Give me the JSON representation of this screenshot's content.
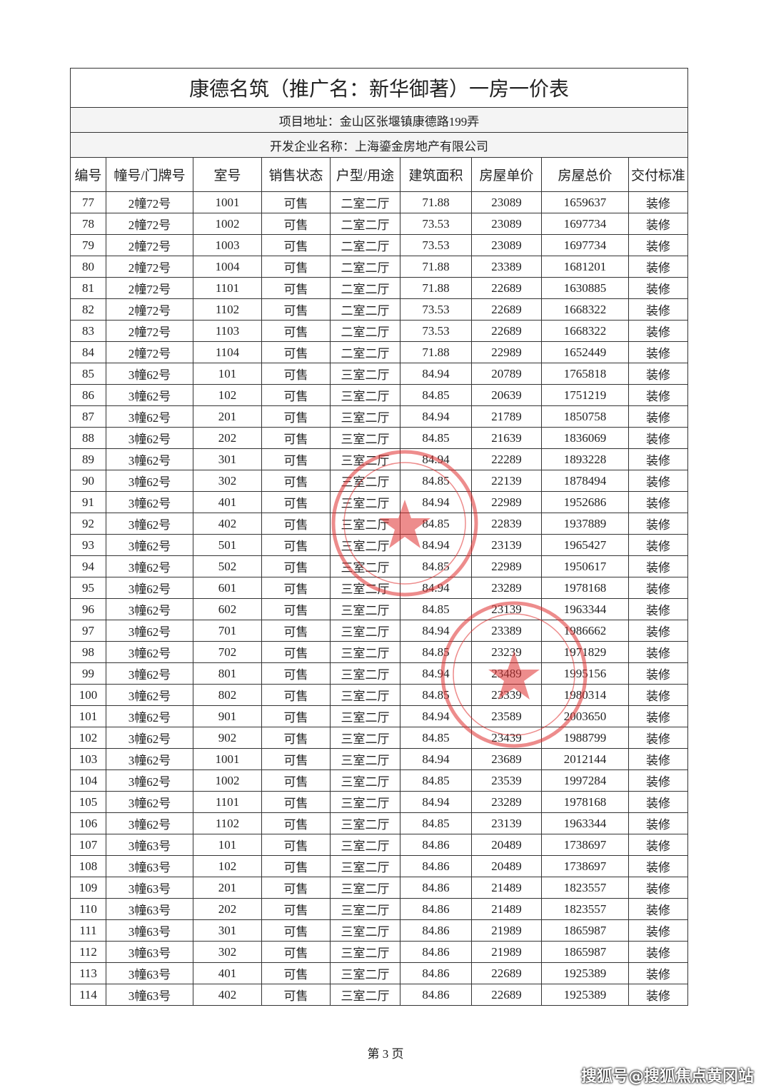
{
  "header": {
    "title": "康德名筑（推广名：新华御著）一房一价表",
    "address": "项目地址：金山区张堰镇康德路199弄",
    "developer": "开发企业名称：上海鎏金房地产有限公司"
  },
  "table": {
    "columns": [
      "编号",
      "幢号/门牌号",
      "室号",
      "销售状态",
      "户型/用途",
      "建筑面积",
      "房屋单价",
      "房屋总价",
      "交付标准"
    ],
    "rows": [
      [
        "77",
        "2幢72号",
        "1001",
        "可售",
        "二室二厅",
        "71.88",
        "23089",
        "1659637",
        "装修"
      ],
      [
        "78",
        "2幢72号",
        "1002",
        "可售",
        "二室二厅",
        "73.53",
        "23089",
        "1697734",
        "装修"
      ],
      [
        "79",
        "2幢72号",
        "1003",
        "可售",
        "二室二厅",
        "73.53",
        "23089",
        "1697734",
        "装修"
      ],
      [
        "80",
        "2幢72号",
        "1004",
        "可售",
        "二室二厅",
        "71.88",
        "23389",
        "1681201",
        "装修"
      ],
      [
        "81",
        "2幢72号",
        "1101",
        "可售",
        "二室二厅",
        "71.88",
        "22689",
        "1630885",
        "装修"
      ],
      [
        "82",
        "2幢72号",
        "1102",
        "可售",
        "二室二厅",
        "73.53",
        "22689",
        "1668322",
        "装修"
      ],
      [
        "83",
        "2幢72号",
        "1103",
        "可售",
        "二室二厅",
        "73.53",
        "22689",
        "1668322",
        "装修"
      ],
      [
        "84",
        "2幢72号",
        "1104",
        "可售",
        "二室二厅",
        "71.88",
        "22989",
        "1652449",
        "装修"
      ],
      [
        "85",
        "3幢62号",
        "101",
        "可售",
        "三室二厅",
        "84.94",
        "20789",
        "1765818",
        "装修"
      ],
      [
        "86",
        "3幢62号",
        "102",
        "可售",
        "三室二厅",
        "84.85",
        "20639",
        "1751219",
        "装修"
      ],
      [
        "87",
        "3幢62号",
        "201",
        "可售",
        "三室二厅",
        "84.94",
        "21789",
        "1850758",
        "装修"
      ],
      [
        "88",
        "3幢62号",
        "202",
        "可售",
        "三室二厅",
        "84.85",
        "21639",
        "1836069",
        "装修"
      ],
      [
        "89",
        "3幢62号",
        "301",
        "可售",
        "三室二厅",
        "84.94",
        "22289",
        "1893228",
        "装修"
      ],
      [
        "90",
        "3幢62号",
        "302",
        "可售",
        "三室二厅",
        "84.85",
        "22139",
        "1878494",
        "装修"
      ],
      [
        "91",
        "3幢62号",
        "401",
        "可售",
        "三室二厅",
        "84.94",
        "22989",
        "1952686",
        "装修"
      ],
      [
        "92",
        "3幢62号",
        "402",
        "可售",
        "三室二厅",
        "84.85",
        "22839",
        "1937889",
        "装修"
      ],
      [
        "93",
        "3幢62号",
        "501",
        "可售",
        "三室二厅",
        "84.94",
        "23139",
        "1965427",
        "装修"
      ],
      [
        "94",
        "3幢62号",
        "502",
        "可售",
        "三室二厅",
        "84.85",
        "22989",
        "1950617",
        "装修"
      ],
      [
        "95",
        "3幢62号",
        "601",
        "可售",
        "三室二厅",
        "84.94",
        "23289",
        "1978168",
        "装修"
      ],
      [
        "96",
        "3幢62号",
        "602",
        "可售",
        "三室二厅",
        "84.85",
        "23139",
        "1963344",
        "装修"
      ],
      [
        "97",
        "3幢62号",
        "701",
        "可售",
        "三室二厅",
        "84.94",
        "23389",
        "1986662",
        "装修"
      ],
      [
        "98",
        "3幢62号",
        "702",
        "可售",
        "三室二厅",
        "84.85",
        "23239",
        "1971829",
        "装修"
      ],
      [
        "99",
        "3幢62号",
        "801",
        "可售",
        "三室二厅",
        "84.94",
        "23489",
        "1995156",
        "装修"
      ],
      [
        "100",
        "3幢62号",
        "802",
        "可售",
        "三室二厅",
        "84.85",
        "23339",
        "1980314",
        "装修"
      ],
      [
        "101",
        "3幢62号",
        "901",
        "可售",
        "三室二厅",
        "84.94",
        "23589",
        "2003650",
        "装修"
      ],
      [
        "102",
        "3幢62号",
        "902",
        "可售",
        "三室二厅",
        "84.85",
        "23439",
        "1988799",
        "装修"
      ],
      [
        "103",
        "3幢62号",
        "1001",
        "可售",
        "三室二厅",
        "84.94",
        "23689",
        "2012144",
        "装修"
      ],
      [
        "104",
        "3幢62号",
        "1002",
        "可售",
        "三室二厅",
        "84.85",
        "23539",
        "1997284",
        "装修"
      ],
      [
        "105",
        "3幢62号",
        "1101",
        "可售",
        "三室二厅",
        "84.94",
        "23289",
        "1978168",
        "装修"
      ],
      [
        "106",
        "3幢62号",
        "1102",
        "可售",
        "三室二厅",
        "84.85",
        "23139",
        "1963344",
        "装修"
      ],
      [
        "107",
        "3幢63号",
        "101",
        "可售",
        "三室二厅",
        "84.86",
        "20489",
        "1738697",
        "装修"
      ],
      [
        "108",
        "3幢63号",
        "102",
        "可售",
        "三室二厅",
        "84.86",
        "20489",
        "1738697",
        "装修"
      ],
      [
        "109",
        "3幢63号",
        "201",
        "可售",
        "三室二厅",
        "84.86",
        "21489",
        "1823557",
        "装修"
      ],
      [
        "110",
        "3幢63号",
        "202",
        "可售",
        "三室二厅",
        "84.86",
        "21489",
        "1823557",
        "装修"
      ],
      [
        "111",
        "3幢63号",
        "301",
        "可售",
        "三室二厅",
        "84.86",
        "21989",
        "1865987",
        "装修"
      ],
      [
        "112",
        "3幢63号",
        "302",
        "可售",
        "三室二厅",
        "84.86",
        "21989",
        "1865987",
        "装修"
      ],
      [
        "113",
        "3幢63号",
        "401",
        "可售",
        "三室二厅",
        "84.86",
        "22689",
        "1925389",
        "装修"
      ],
      [
        "114",
        "3幢63号",
        "402",
        "可售",
        "三室二厅",
        "84.86",
        "22689",
        "1925389",
        "装修"
      ]
    ]
  },
  "footer": {
    "page": "第 3 页",
    "watermark": "搜狐号@搜狐焦点黄冈站"
  }
}
